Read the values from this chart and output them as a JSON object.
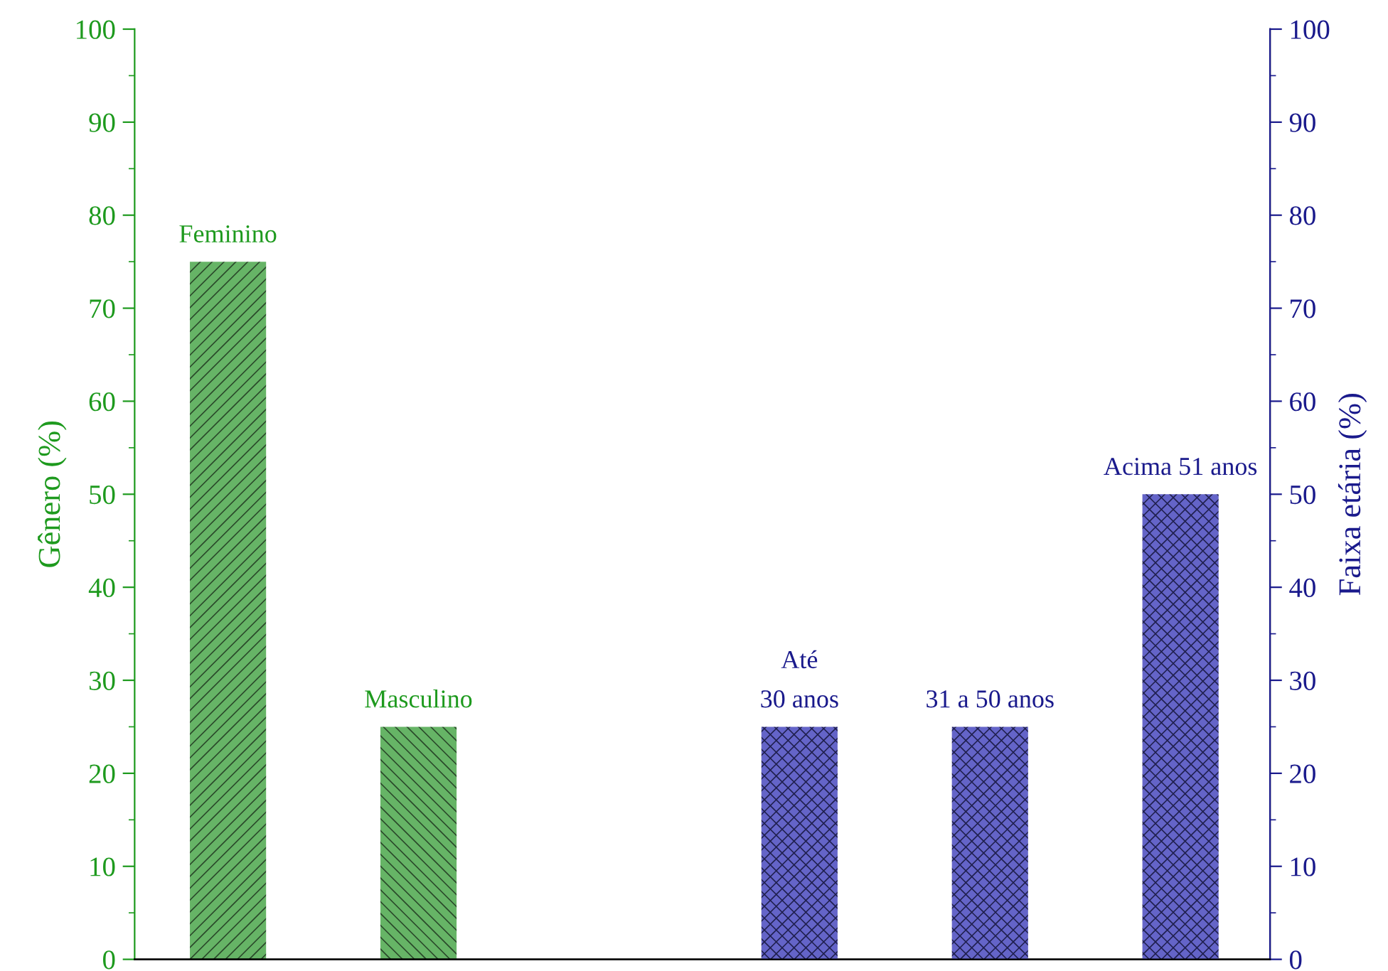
{
  "chart_data": {
    "type": "bar",
    "categories": [
      "Feminino",
      "Masculino",
      null,
      "Até\n30 anos",
      "31 a 50 anos",
      "Acima 51 anos"
    ],
    "series": [
      {
        "color": "#66b466",
        "values": [
          75,
          25,
          null,
          null,
          null,
          null
        ]
      },
      {
        "color": "#6464c8",
        "axis": "y2",
        "values": [
          null,
          null,
          null,
          25,
          25,
          50
        ]
      }
    ],
    "ylabel": "Gênero (%)",
    "y2label": "Faixa etária (%)",
    "ylim": [
      0,
      100
    ],
    "yticks": [
      0,
      10,
      20,
      30,
      40,
      50,
      60,
      70,
      80,
      90,
      100
    ],
    "y2lim": [
      0,
      100
    ],
    "y2ticks": [
      0,
      10,
      20,
      30,
      40,
      50,
      60,
      70,
      80,
      90,
      100
    ],
    "grid": false,
    "legend": false
  }
}
